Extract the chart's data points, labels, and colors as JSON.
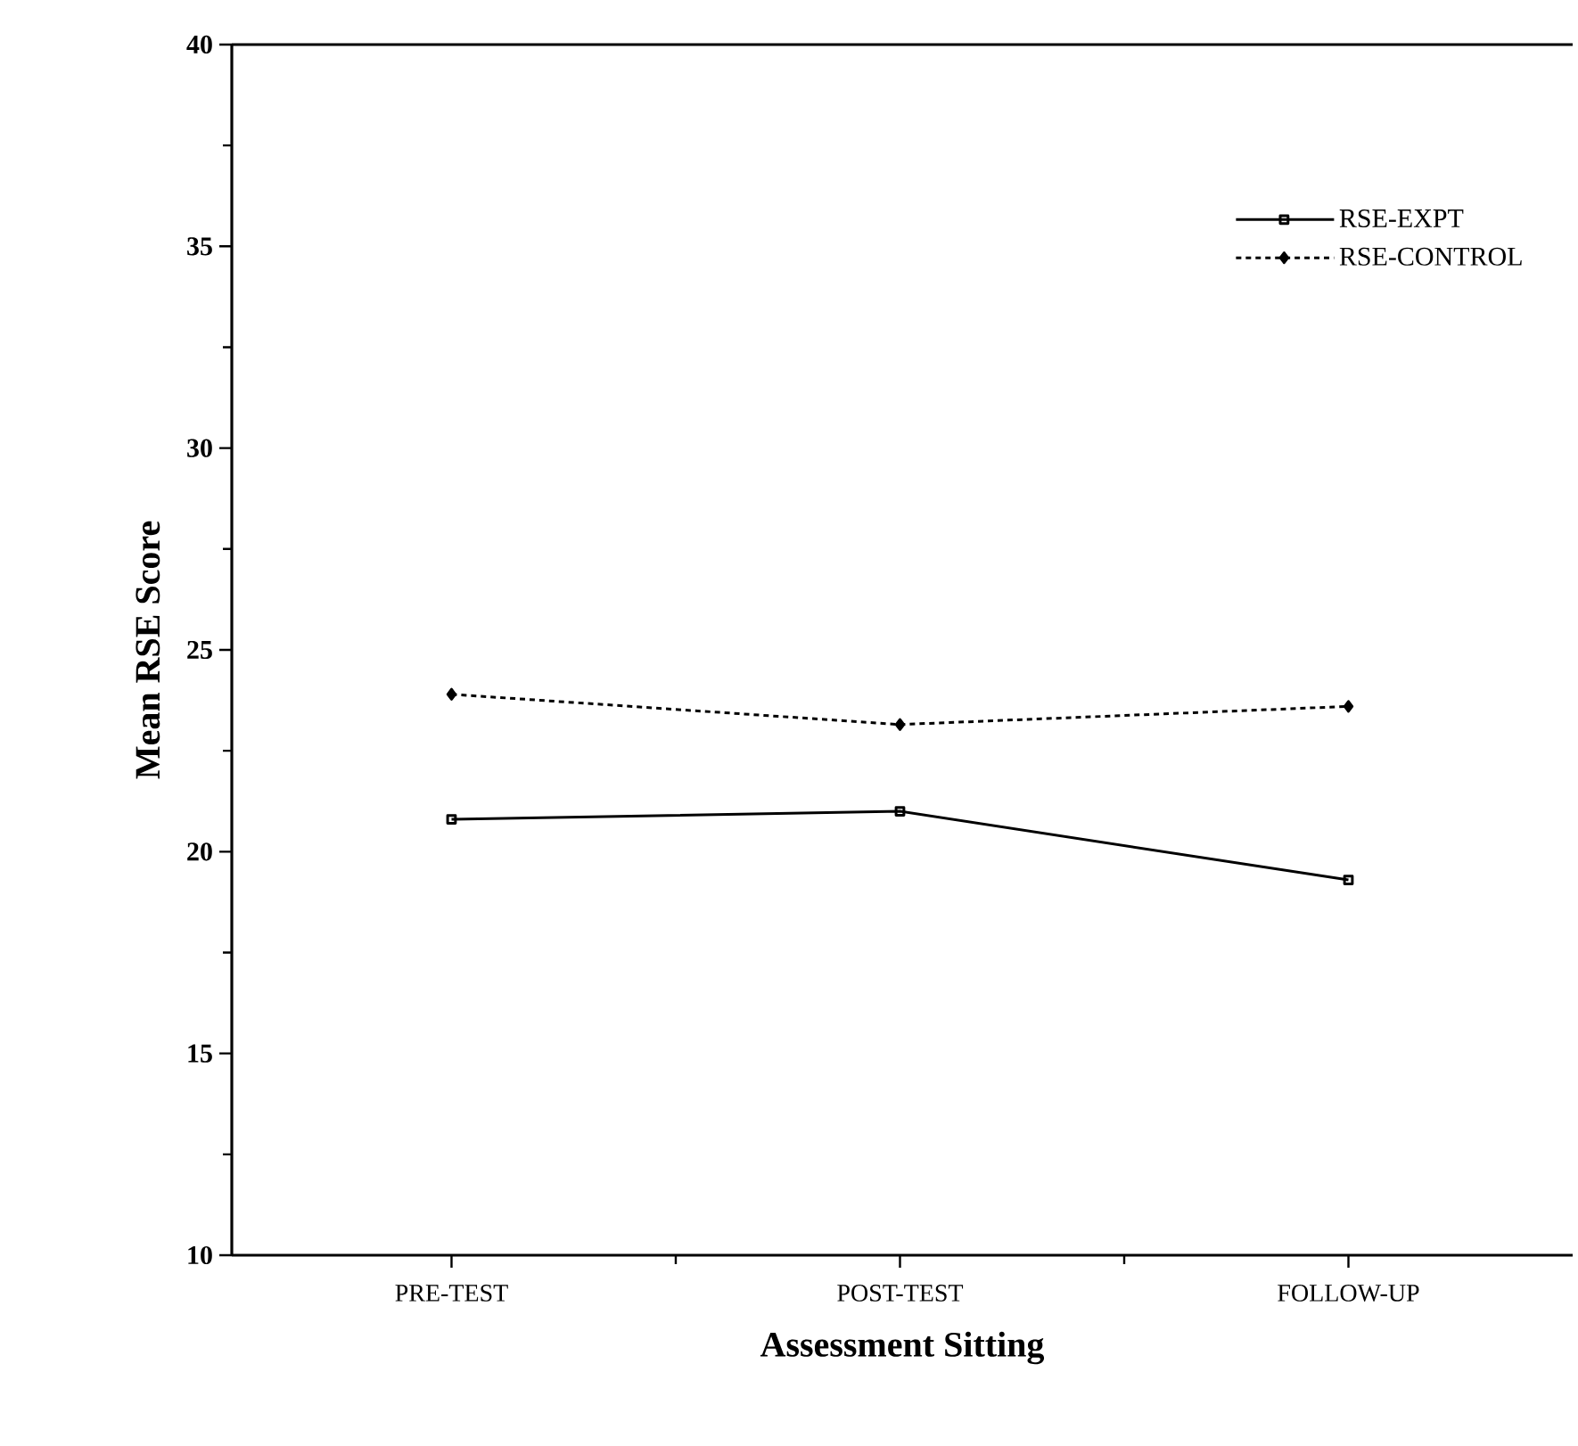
{
  "chart_data": {
    "type": "line",
    "xlabel": "Assessment  Sitting",
    "ylabel": "Mean  RSE  Score",
    "categories": [
      "PRE-TEST",
      "POST-TEST",
      "FOLLOW-UP"
    ],
    "series": [
      {
        "name": "RSE-EXPT",
        "color": "#000000",
        "values": [
          20.8,
          21.0,
          19.3
        ],
        "marker": "square",
        "line_style": "solid"
      },
      {
        "name": "RSE-CONTROL",
        "color": "#000000",
        "values": [
          23.9,
          23.15,
          23.6
        ],
        "marker": "diamond",
        "line_style": "dashed"
      }
    ],
    "ylim": [
      10,
      40
    ],
    "yticks": [
      10,
      15,
      20,
      25,
      30,
      35,
      40
    ],
    "grid": false,
    "legend": "top right"
  }
}
